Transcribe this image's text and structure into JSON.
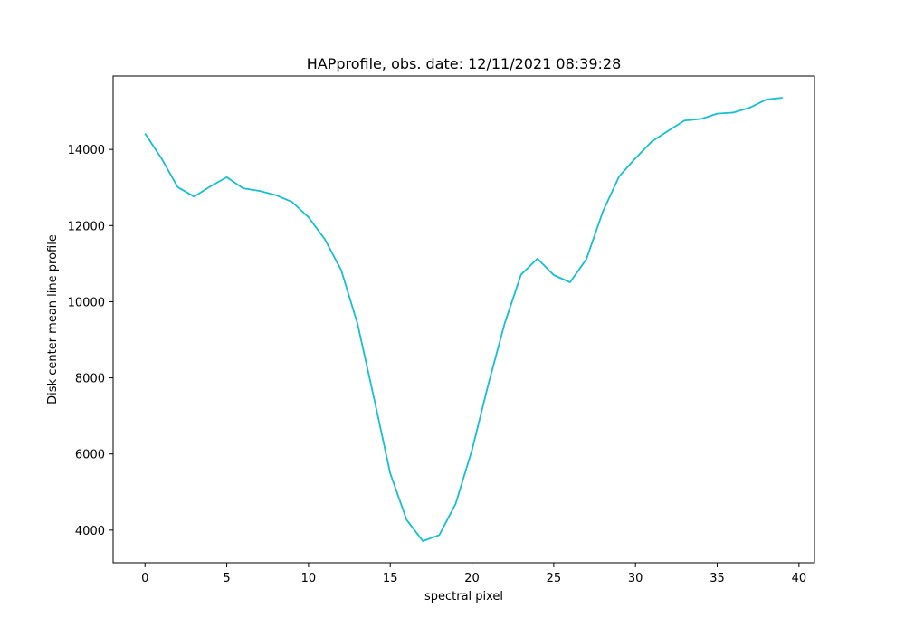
{
  "chart_data": {
    "type": "line",
    "title": "HAPprofile, obs. date: 12/11/2021 08:39:28",
    "xlabel": "spectral pixel",
    "ylabel": "Disk center mean line profile",
    "xlim": [
      -1.95,
      40.95
    ],
    "ylim": [
      3140,
      15930
    ],
    "xticks": [
      0,
      5,
      10,
      15,
      20,
      25,
      30,
      35,
      40
    ],
    "yticks": [
      4000,
      6000,
      8000,
      10000,
      12000,
      14000
    ],
    "grid": false,
    "legend": "none",
    "line_color": "#17becf",
    "series": [
      {
        "x": [
          0,
          1,
          2,
          3,
          4,
          5,
          6,
          7,
          8,
          9,
          10,
          11,
          12,
          13,
          14,
          15,
          16,
          17,
          18,
          19,
          20,
          21,
          22,
          23,
          24,
          25,
          26,
          27,
          28,
          29,
          30,
          31,
          32,
          33,
          34,
          35,
          36,
          37,
          38,
          39
        ],
        "values": [
          14420,
          13770,
          13010,
          12760,
          13030,
          13270,
          12980,
          12910,
          12800,
          12620,
          12220,
          11640,
          10830,
          9420,
          7480,
          5490,
          4270,
          3710,
          3870,
          4690,
          6100,
          7830,
          9430,
          10710,
          11130,
          10700,
          10510,
          11120,
          12360,
          13290,
          13770,
          14210,
          14490,
          14760,
          14800,
          14940,
          14970,
          15100,
          15310,
          15360
        ]
      }
    ]
  }
}
